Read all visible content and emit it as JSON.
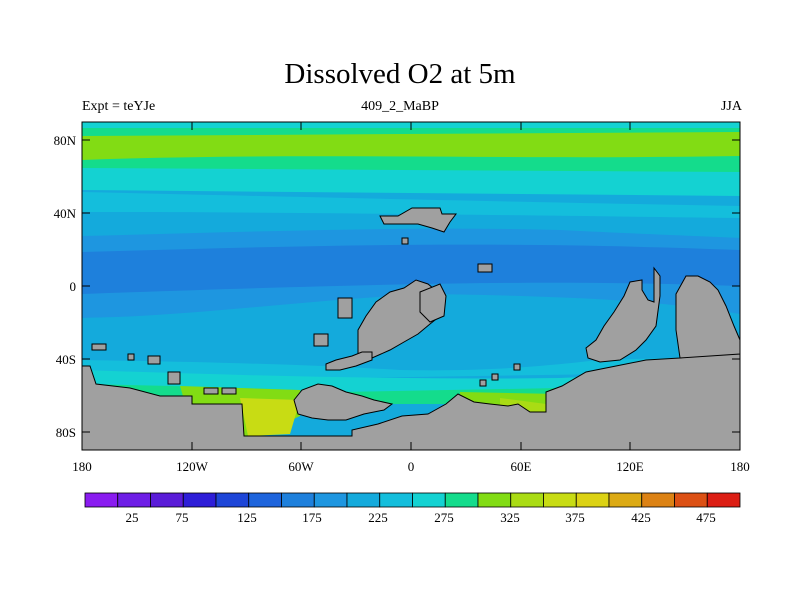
{
  "title": "Dissolved O2 at 5m",
  "subtitle_left": "Expt = teYJe",
  "subtitle_center": "409_2_MaBP",
  "subtitle_right": "JJA",
  "lat_ticks": [
    "80N",
    "40N",
    "0",
    "40S",
    "80S"
  ],
  "lon_ticks": [
    "180",
    "120W",
    "60W",
    "0",
    "60E",
    "120E",
    "180"
  ],
  "colorbar": {
    "colors": [
      "#8a1cf0",
      "#6e1ee6",
      "#5a1cd8",
      "#2e1ed8",
      "#1e46d8",
      "#1e64dc",
      "#1e80dc",
      "#1e96e0",
      "#14aadc",
      "#14bedc",
      "#14d2d2",
      "#14dc8c",
      "#82dc14",
      "#aadc14",
      "#c8dc14",
      "#dcd214",
      "#dcaa14",
      "#dc8214",
      "#dc5014",
      "#dc1e14"
    ],
    "labels": [
      "25",
      "75",
      "125",
      "175",
      "225",
      "275",
      "325",
      "375",
      "425",
      "475"
    ]
  },
  "map_colors": {
    "land": "#a0a0a0"
  }
}
